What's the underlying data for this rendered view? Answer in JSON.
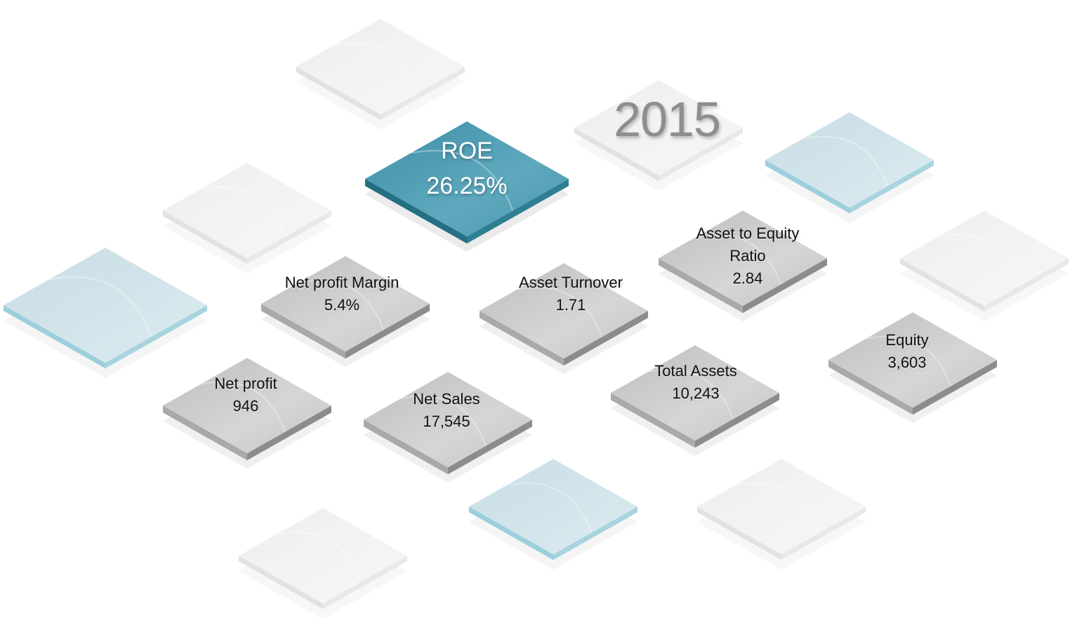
{
  "year": "2015",
  "tiles": [
    {
      "label": "ROE",
      "value": "26.25%"
    },
    {
      "label": "Net profit Margin",
      "value": "5.4%"
    },
    {
      "label": "Asset Turnover",
      "value": "1.71"
    },
    {
      "label": "Asset to Equity Ratio",
      "value": "2.84"
    },
    {
      "label": "Net profit",
      "value": "946"
    },
    {
      "label": "Net Sales",
      "value": "17,545"
    },
    {
      "label": "Total Assets",
      "value": "10,243"
    },
    {
      "label": "Equity",
      "value": "3,603"
    }
  ]
}
